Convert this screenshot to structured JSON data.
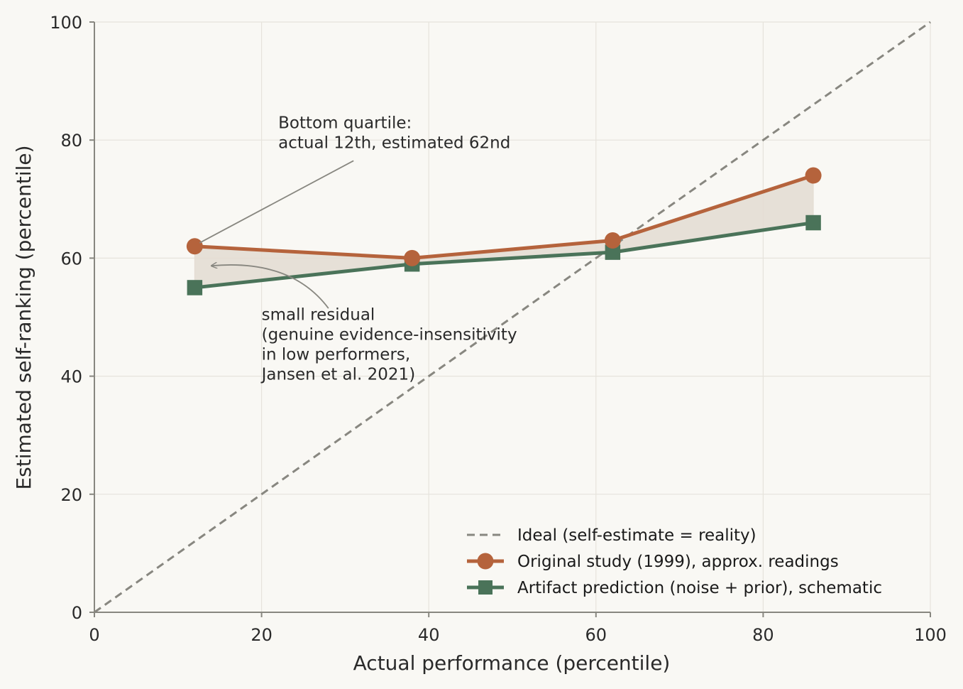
{
  "chart_data": {
    "type": "line",
    "xlabel": "Actual performance (percentile)",
    "ylabel": "Estimated self-ranking (percentile)",
    "xlim": [
      0,
      100
    ],
    "ylim": [
      0,
      100
    ],
    "xticks": [
      0,
      20,
      40,
      60,
      80,
      100
    ],
    "yticks": [
      0,
      20,
      40,
      60,
      80,
      100
    ],
    "grid": true,
    "legend_position": "bottom-right",
    "colors": {
      "background": "#f9f8f4",
      "ideal": "#888780",
      "original": "#b5633c",
      "artifact": "#4a7359",
      "fill": "#e3dcd1",
      "grid": "#e6e3dc",
      "axis": "#888780"
    },
    "series": [
      {
        "name": "Ideal (self-estimate = reality)",
        "style": "dashed",
        "x": [
          0,
          100
        ],
        "y": [
          0,
          100
        ]
      },
      {
        "name": "Original study (1999), approx. readings",
        "marker": "circle",
        "x": [
          12,
          38,
          62,
          86
        ],
        "y": [
          62,
          60,
          63,
          74
        ]
      },
      {
        "name": "Artifact prediction (noise + prior), schematic",
        "marker": "square",
        "x": [
          12,
          38,
          62,
          86
        ],
        "y": [
          55,
          59,
          61,
          66
        ]
      }
    ],
    "annotations": [
      {
        "lines": [
          "Bottom quartile:",
          "actual 12th, estimated 62nd"
        ],
        "text_at": [
          22,
          82
        ],
        "arrow_from": [
          31,
          76.5
        ],
        "arrow_to": [
          12.6,
          62.6
        ],
        "arrow_style": "line"
      },
      {
        "lines": [
          "small residual",
          "(genuine evidence-insensitivity",
          "in low performers,",
          "Jansen et al. 2021)"
        ],
        "text_at": [
          20,
          49.5
        ],
        "arrow_from": [
          28,
          51.5
        ],
        "arrow_to": [
          14,
          58.7
        ],
        "arrow_style": "curved-arrow"
      }
    ]
  }
}
